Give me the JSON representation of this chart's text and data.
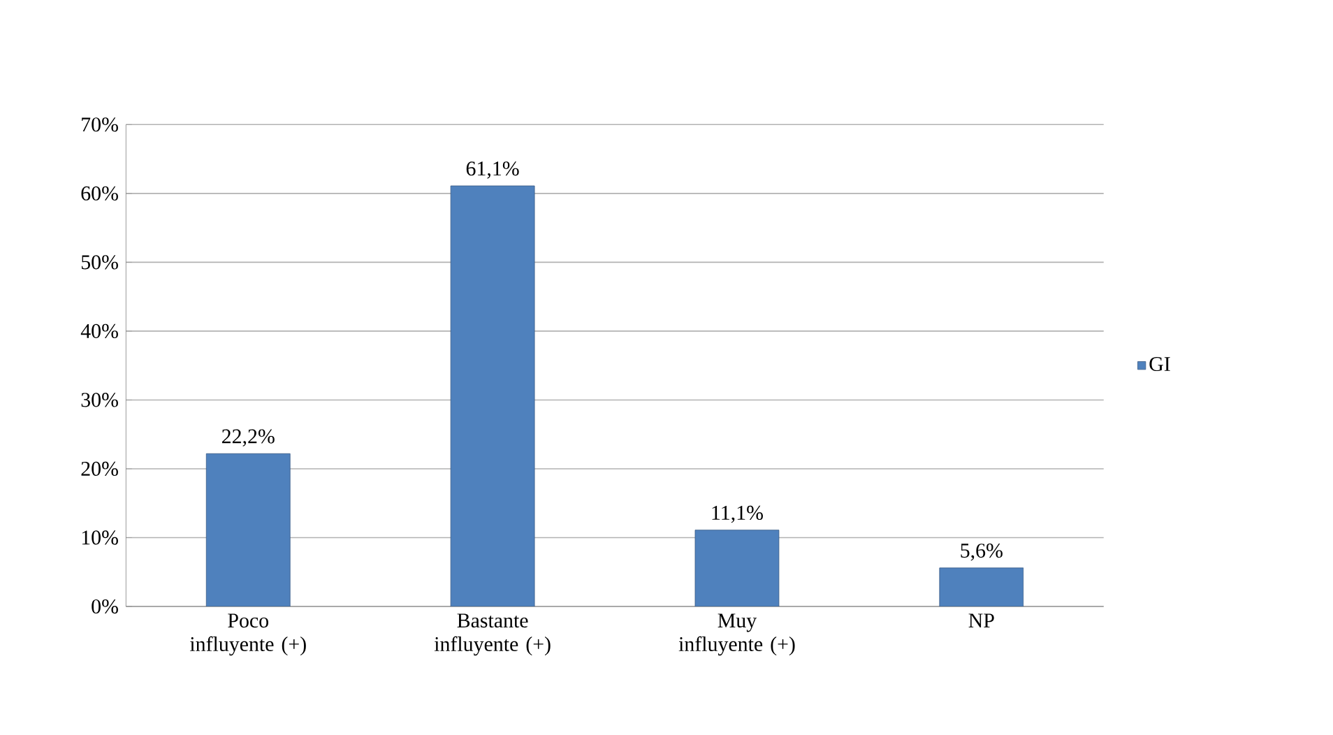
{
  "chart_data": {
    "type": "bar",
    "categories": [
      "Poco influyente (+)",
      "Bastante influyente (+)",
      "Muy influyente (+)",
      "NP"
    ],
    "series": [
      {
        "name": "GI",
        "color": "#4f81bd",
        "values": [
          22.2,
          61.1,
          11.1,
          5.6
        ],
        "value_labels": [
          "22,2%",
          "61,1%",
          "11,1%",
          "5,6%"
        ]
      }
    ],
    "ylim": [
      0,
      70
    ],
    "yticks": [
      {
        "value": 0,
        "label": "0%"
      },
      {
        "value": 10,
        "label": "10%"
      },
      {
        "value": 20,
        "label": "20%"
      },
      {
        "value": 30,
        "label": "30%"
      },
      {
        "value": 40,
        "label": "40%"
      },
      {
        "value": 50,
        "label": "50%"
      },
      {
        "value": 60,
        "label": "60%"
      },
      {
        "value": 70,
        "label": "70%"
      }
    ],
    "grid": "y",
    "legend": "right"
  }
}
